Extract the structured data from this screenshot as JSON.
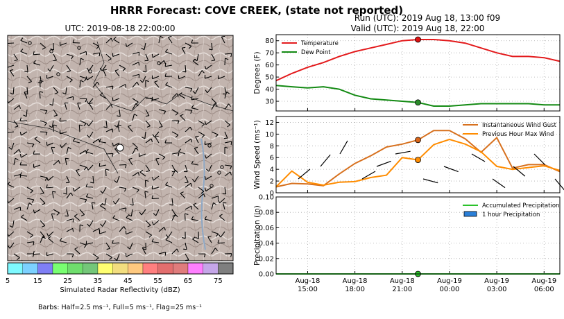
{
  "title": "HRRR Forecast: COVE CREEK, (state not reported)",
  "map": {
    "utc_label": "UTC: 2019-08-18 22:00:00",
    "colorbar": {
      "label": "Simulated Radar Reflectivity (dBZ)",
      "ticks": [
        "5",
        "15",
        "25",
        "35",
        "45",
        "55",
        "65",
        "75"
      ],
      "colors": [
        "#7ef9ff",
        "#7cd1ff",
        "#7f7ff5",
        "#79ff71",
        "#6fde6d",
        "#74c779",
        "#ffff71",
        "#f3de7f",
        "#ffc97f",
        "#ff7f7f",
        "#e36e6e",
        "#e07c7c",
        "#ff7fff",
        "#c5a6e8",
        "#7f7f7f"
      ]
    },
    "barbs_note": "Barbs: Half=2.5 ms⁻¹, Full=5 ms⁻¹, Flag=25 ms⁻¹"
  },
  "header": {
    "run": "Run (UTC): 2019 Aug 18, 13:00 f09",
    "valid": "Valid (UTC): 2019 Aug 18, 22:00"
  },
  "colors": {
    "temperature": "#e31a1c",
    "dewpoint": "#138a13",
    "gust": "#d7711f",
    "maxwind": "#ff8c00",
    "accum": "#2bc22b",
    "hourly": "#2a7fd8",
    "marker_temp": "#d11",
    "marker_dew": "#2a8a2a",
    "marker_gust": "#d9661a",
    "marker_max": "#ff8c00"
  },
  "chart_data": [
    {
      "type": "line",
      "panel": "temperature",
      "ylabel": "Degrees (F)",
      "ylim": [
        22,
        85
      ],
      "yticks": [
        30,
        40,
        50,
        60,
        70,
        80
      ],
      "x": [
        "2019-08-18 13:00",
        "2019-08-18 14:00",
        "2019-08-18 15:00",
        "2019-08-18 16:00",
        "2019-08-18 17:00",
        "2019-08-18 18:00",
        "2019-08-18 19:00",
        "2019-08-18 20:00",
        "2019-08-18 21:00",
        "2019-08-18 22:00",
        "2019-08-18 23:00",
        "2019-08-19 00:00",
        "2019-08-19 01:00",
        "2019-08-19 02:00",
        "2019-08-19 03:00",
        "2019-08-19 04:00",
        "2019-08-19 05:00",
        "2019-08-19 06:00",
        "2019-08-19 07:00"
      ],
      "series": [
        {
          "name": "Temperature",
          "values": [
            47,
            53,
            58,
            62,
            67,
            71,
            74,
            77,
            80,
            81,
            81,
            80,
            78,
            74,
            70,
            67,
            67,
            66,
            63
          ]
        },
        {
          "name": "Dew Point",
          "values": [
            43,
            42,
            41,
            42,
            40,
            35,
            32,
            31,
            30,
            29,
            26,
            26,
            27,
            28,
            28,
            28,
            28,
            27,
            27
          ]
        }
      ],
      "legend": "top-left",
      "current_x": "2019-08-18 22:00",
      "current_values": {
        "Temperature": 81,
        "Dew Point": 29
      }
    },
    {
      "type": "line",
      "panel": "wind",
      "ylabel": "Wind Speed (ms⁻¹)",
      "ylim": [
        0,
        13
      ],
      "yticks": [
        0,
        2,
        4,
        6,
        8,
        10,
        12
      ],
      "x": [
        "2019-08-18 13:00",
        "2019-08-18 14:00",
        "2019-08-18 15:00",
        "2019-08-18 16:00",
        "2019-08-18 17:00",
        "2019-08-18 18:00",
        "2019-08-18 19:00",
        "2019-08-18 20:00",
        "2019-08-18 21:00",
        "2019-08-18 22:00",
        "2019-08-18 23:00",
        "2019-08-19 00:00",
        "2019-08-19 01:00",
        "2019-08-19 02:00",
        "2019-08-19 03:00",
        "2019-08-19 04:00",
        "2019-08-19 05:00",
        "2019-08-19 06:00",
        "2019-08-19 07:00"
      ],
      "series": [
        {
          "name": "Instantaneous Wind Gust",
          "values": [
            1.0,
            1.6,
            1.5,
            1.2,
            3.2,
            5.0,
            6.3,
            7.8,
            8.3,
            9.0,
            10.6,
            10.6,
            9.2,
            6.9,
            9.4,
            4.2,
            4.8,
            4.8,
            3.6
          ]
        },
        {
          "name": "Previous Hour Max Wind",
          "values": [
            1.0,
            3.7,
            1.8,
            1.3,
            1.8,
            1.9,
            2.6,
            3.0,
            6.0,
            5.6,
            8.2,
            9.1,
            8.3,
            7.0,
            4.5,
            4.0,
            4.3,
            4.6,
            3.8
          ]
        }
      ],
      "legend": "top-right",
      "current_x": "2019-08-18 22:00",
      "current_values": {
        "Instantaneous Wind Gust": 9.0,
        "Previous Hour Max Wind": 5.6
      }
    },
    {
      "type": "line",
      "panel": "precipitation",
      "ylabel": "Precipitation (in)",
      "ylim": [
        0,
        0.1
      ],
      "yticks": [
        0.0,
        0.02,
        0.04,
        0.06,
        0.08,
        0.1
      ],
      "ytick_labels": [
        "0.00",
        "0.02",
        "0.04",
        "0.06",
        "0.08",
        "0.10"
      ],
      "x": [
        "2019-08-18 13:00",
        "2019-08-19 07:00"
      ],
      "series": [
        {
          "name": "Accumulated Precipitation",
          "values": [
            0,
            0
          ]
        },
        {
          "name": "1 hour Precipitation",
          "values": [
            0,
            0
          ]
        }
      ],
      "legend": "top-right",
      "current_x": "2019-08-18 22:00",
      "current_values": {
        "Accumulated Precipitation": 0
      }
    }
  ],
  "xaxis": {
    "ticks": [
      {
        "x": "2019-08-18 15:00",
        "line1": "Aug-18",
        "line2": "15:00"
      },
      {
        "x": "2019-08-18 18:00",
        "line1": "Aug-18",
        "line2": "18:00"
      },
      {
        "x": "2019-08-18 21:00",
        "line1": "Aug-18",
        "line2": "21:00"
      },
      {
        "x": "2019-08-19 00:00",
        "line1": "Aug-19",
        "line2": "00:00"
      },
      {
        "x": "2019-08-19 03:00",
        "line1": "Aug-19",
        "line2": "03:00"
      },
      {
        "x": "2019-08-19 06:00",
        "line1": "Aug-19",
        "line2": "06:00"
      }
    ]
  }
}
